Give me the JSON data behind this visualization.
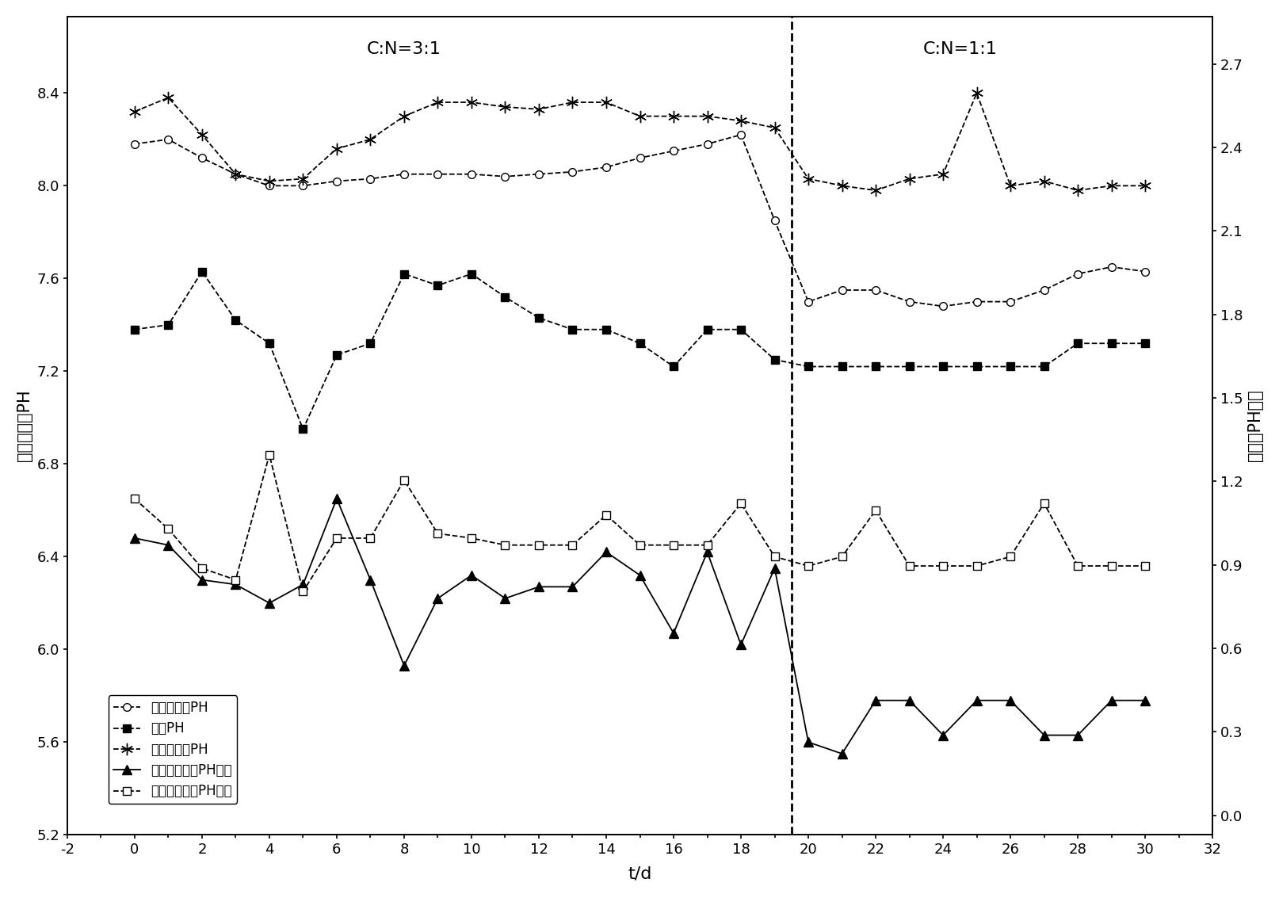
{
  "xlabel": "t/d",
  "ylabel_left": "进水和出水PH",
  "ylabel_right": "进出水PH差値",
  "cn_label1": "C:N=3:1",
  "cn_label2": "C:N=1:1",
  "vline_x": 19.5,
  "xlim": [
    -2,
    32
  ],
  "ylim_left": [
    5.2,
    8.73
  ],
  "ylim_right": [
    -0.07,
    2.87
  ],
  "yticks_left": [
    5.2,
    5.6,
    6.0,
    6.4,
    6.8,
    7.2,
    7.6,
    8.0,
    8.4
  ],
  "yticks_right": [
    0.0,
    0.3,
    0.6,
    0.9,
    1.2,
    1.5,
    1.8,
    2.1,
    2.4,
    2.7
  ],
  "xticks": [
    -2,
    0,
    2,
    4,
    6,
    8,
    10,
    12,
    14,
    16,
    18,
    20,
    22,
    24,
    26,
    28,
    30,
    32
  ],
  "series_qianghua_chushui": {
    "label": "强化型出水PH",
    "x": [
      0,
      1,
      2,
      3,
      4,
      5,
      6,
      7,
      8,
      9,
      10,
      11,
      12,
      13,
      14,
      15,
      16,
      17,
      18,
      19,
      20,
      21,
      22,
      23,
      24,
      25,
      26,
      27,
      28,
      29,
      30
    ],
    "y": [
      8.18,
      8.2,
      8.12,
      8.05,
      8.0,
      8.0,
      8.02,
      8.03,
      8.05,
      8.05,
      8.05,
      8.04,
      8.05,
      8.06,
      8.08,
      8.12,
      8.15,
      8.18,
      8.22,
      7.85,
      7.5,
      7.55,
      7.55,
      7.5,
      7.48,
      7.5,
      7.5,
      7.55,
      7.62,
      7.65,
      7.63
    ]
  },
  "series_jinshui": {
    "label": "进水PH",
    "x": [
      0,
      1,
      2,
      3,
      4,
      5,
      6,
      7,
      8,
      9,
      10,
      11,
      12,
      13,
      14,
      15,
      16,
      17,
      18,
      19,
      20,
      21,
      22,
      23,
      24,
      25,
      26,
      27,
      28,
      29,
      30
    ],
    "y": [
      7.38,
      7.4,
      7.63,
      7.42,
      7.32,
      6.95,
      7.27,
      7.32,
      7.62,
      7.57,
      7.62,
      7.52,
      7.43,
      7.38,
      7.38,
      7.32,
      7.22,
      7.38,
      7.38,
      7.25,
      7.22,
      7.22,
      7.22,
      7.22,
      7.22,
      7.22,
      7.22,
      7.22,
      7.32,
      7.32,
      7.32
    ]
  },
  "series_changgui_chushui": {
    "label": "常规型出水PH",
    "x": [
      0,
      1,
      2,
      3,
      4,
      5,
      6,
      7,
      8,
      9,
      10,
      11,
      12,
      13,
      14,
      15,
      16,
      17,
      18,
      19,
      20,
      21,
      22,
      23,
      24,
      25,
      26,
      27,
      28,
      29,
      30
    ],
    "y": [
      8.32,
      8.38,
      8.22,
      8.05,
      8.02,
      8.03,
      8.16,
      8.2,
      8.3,
      8.36,
      8.36,
      8.34,
      8.33,
      8.36,
      8.36,
      8.3,
      8.3,
      8.3,
      8.28,
      8.25,
      8.03,
      8.0,
      7.98,
      8.03,
      8.05,
      8.4,
      8.0,
      8.02,
      7.98,
      8.0,
      8.0
    ]
  },
  "series_qianghua_cha": {
    "label": "强化型进出水PH差値",
    "x": [
      0,
      1,
      2,
      3,
      4,
      5,
      6,
      7,
      8,
      9,
      10,
      11,
      12,
      13,
      14,
      15,
      16,
      17,
      18,
      19,
      20,
      21,
      22,
      23,
      24,
      25,
      26,
      27,
      28,
      29,
      30
    ],
    "y": [
      6.48,
      6.45,
      6.3,
      6.28,
      6.2,
      6.28,
      6.65,
      6.3,
      5.93,
      6.22,
      6.32,
      6.22,
      6.27,
      6.27,
      6.42,
      6.32,
      6.07,
      6.42,
      6.02,
      6.35,
      5.6,
      5.55,
      5.78,
      5.78,
      5.63,
      5.78,
      5.78,
      5.63,
      5.63,
      5.78,
      5.78
    ]
  },
  "series_changgui_cha": {
    "label": "常规型进出水PH差値",
    "x": [
      0,
      1,
      2,
      3,
      4,
      5,
      6,
      7,
      8,
      9,
      10,
      11,
      12,
      13,
      14,
      15,
      16,
      17,
      18,
      19,
      20,
      21,
      22,
      23,
      24,
      25,
      26,
      27,
      28,
      29,
      30
    ],
    "y": [
      6.65,
      6.52,
      6.35,
      6.3,
      6.84,
      6.25,
      6.48,
      6.48,
      6.73,
      6.5,
      6.48,
      6.45,
      6.45,
      6.45,
      6.58,
      6.45,
      6.45,
      6.45,
      6.63,
      6.4,
      6.36,
      6.4,
      6.6,
      6.36,
      6.36,
      6.36,
      6.4,
      6.63,
      6.36,
      6.36,
      6.36
    ]
  }
}
